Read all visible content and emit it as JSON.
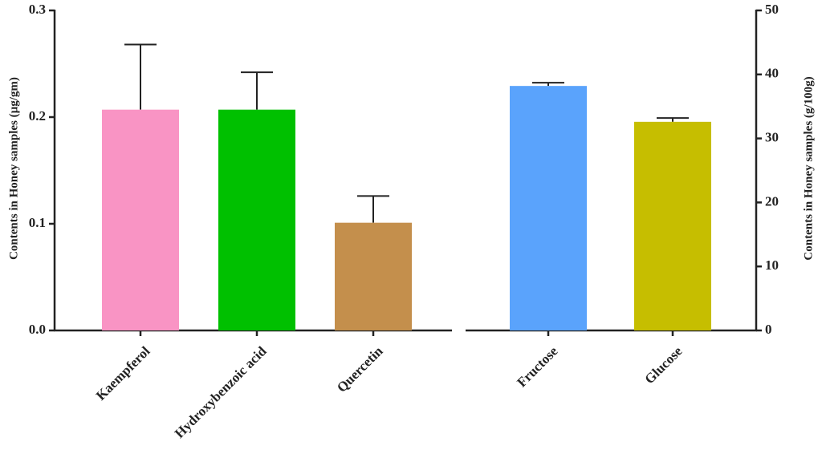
{
  "chart_data": {
    "type": "bar",
    "ylabel": "Contents in Honey samples (µg/gm)",
    "y2label": "Contents in Honey samples (g/100g)",
    "ylim": [
      0,
      0.3
    ],
    "yticks": [
      {
        "value": 0,
        "label": "0.0"
      },
      0.1,
      0.2,
      0.3
    ],
    "y2lim": [
      0,
      50
    ],
    "y2ticks": [
      0,
      10,
      20,
      30,
      40,
      50
    ],
    "series": [
      {
        "categories": [
          "Kaempferol",
          "Hydroxybenzoic acid",
          "Quercetin"
        ],
        "values": [
          0.207,
          0.207,
          0.101
        ],
        "errors": [
          0.061,
          0.035,
          0.025
        ],
        "colors": [
          "#f994c4",
          "#00c000",
          "#c48f4c"
        ]
      },
      {
        "categories": [
          "Fructose",
          "Glucose"
        ],
        "axis": "y2",
        "values": [
          38.2,
          32.6
        ],
        "errors": [
          0.5,
          0.6
        ],
        "colors": [
          "#5aa3fc",
          "#c6be00"
        ]
      }
    ]
  }
}
